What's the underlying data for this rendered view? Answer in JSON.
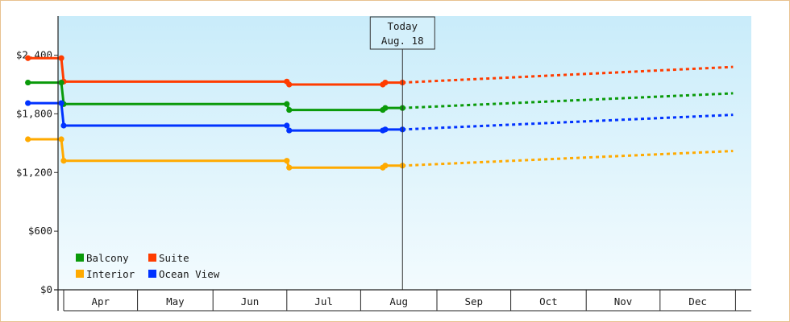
{
  "chart_data": {
    "type": "line",
    "y_axis": {
      "ticks": [
        0,
        600,
        1200,
        1800,
        2400
      ],
      "tick_labels": [
        "$0",
        "$600",
        "$1,200",
        "$1,800",
        "$2,400"
      ],
      "ylim": [
        0,
        2800
      ]
    },
    "x_axis": {
      "months": [
        "Apr",
        "May",
        "Jun",
        "Jul",
        "Aug",
        "Sep",
        "Oct",
        "Nov",
        "Dec"
      ]
    },
    "today_marker": {
      "line1": "Today",
      "line2": "Aug. 18"
    },
    "series": [
      {
        "name": "Suite",
        "color": "#ff3c00",
        "actual": [
          [
            "Mar 17",
            2370
          ],
          [
            "Mar 31",
            2370
          ],
          [
            "Apr 1",
            2130
          ],
          [
            "Jul 1",
            2130
          ],
          [
            "Jul 2",
            2100
          ],
          [
            "Aug 10",
            2100
          ],
          [
            "Aug 11",
            2120
          ],
          [
            "Aug 18",
            2120
          ]
        ],
        "forecast": [
          [
            "Aug 18",
            2120
          ],
          [
            "Dec 31",
            2280
          ]
        ]
      },
      {
        "name": "Balcony",
        "color": "#0a9a0a",
        "actual": [
          [
            "Mar 17",
            2120
          ],
          [
            "Mar 31",
            2120
          ],
          [
            "Apr 1",
            1900
          ],
          [
            "Jul 1",
            1900
          ],
          [
            "Jul 2",
            1840
          ],
          [
            "Aug 10",
            1840
          ],
          [
            "Aug 11",
            1860
          ],
          [
            "Aug 18",
            1860
          ]
        ],
        "forecast": [
          [
            "Aug 18",
            1860
          ],
          [
            "Dec 31",
            2010
          ]
        ]
      },
      {
        "name": "Ocean View",
        "color": "#0032ff",
        "actual": [
          [
            "Mar 17",
            1910
          ],
          [
            "Mar 31",
            1910
          ],
          [
            "Apr 1",
            1680
          ],
          [
            "Jul 1",
            1680
          ],
          [
            "Jul 2",
            1630
          ],
          [
            "Aug 10",
            1630
          ],
          [
            "Aug 11",
            1640
          ],
          [
            "Aug 18",
            1640
          ]
        ],
        "forecast": [
          [
            "Aug 18",
            1640
          ],
          [
            "Dec 31",
            1790
          ]
        ]
      },
      {
        "name": "Interior",
        "color": "#ffaa00",
        "actual": [
          [
            "Mar 17",
            1540
          ],
          [
            "Mar 31",
            1540
          ],
          [
            "Apr 1",
            1320
          ],
          [
            "Jul 1",
            1320
          ],
          [
            "Jul 2",
            1250
          ],
          [
            "Aug 10",
            1250
          ],
          [
            "Aug 11",
            1270
          ],
          [
            "Aug 18",
            1270
          ]
        ],
        "forecast": [
          [
            "Aug 18",
            1270
          ],
          [
            "Dec 31",
            1420
          ]
        ]
      }
    ],
    "legend": {
      "placement": "bottom-left",
      "rows": [
        [
          "Balcony",
          "Suite"
        ],
        [
          "Interior",
          "Ocean View"
        ]
      ]
    }
  }
}
